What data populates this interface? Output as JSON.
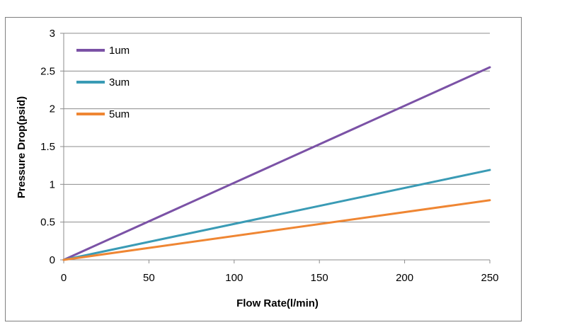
{
  "chart_data": {
    "type": "line",
    "title": "",
    "xlabel": "Flow Rate(l/min)",
    "ylabel": "Pressure Drop(psid)",
    "xlim": [
      0,
      250
    ],
    "ylim": [
      0,
      3
    ],
    "xticks": [
      0,
      50,
      100,
      150,
      200,
      250
    ],
    "yticks": [
      0,
      0.5,
      1,
      1.5,
      2,
      2.5,
      3
    ],
    "xtick_labels": [
      "0",
      "50",
      "100",
      "150",
      "200",
      "250"
    ],
    "ytick_labels": [
      "0",
      "0.5",
      "1",
      "1.5",
      "2",
      "2.5",
      "3"
    ],
    "grid": "horizontal",
    "legend_position": "top-left",
    "series": [
      {
        "name": "1um",
        "color": "#7b52a6",
        "x": [
          0,
          250
        ],
        "y": [
          0,
          2.55
        ]
      },
      {
        "name": "3um",
        "color": "#3a9bb5",
        "x": [
          0,
          250
        ],
        "y": [
          0,
          1.19
        ]
      },
      {
        "name": "5um",
        "color": "#ef8633",
        "x": [
          0,
          250
        ],
        "y": [
          0,
          0.79
        ]
      }
    ]
  }
}
